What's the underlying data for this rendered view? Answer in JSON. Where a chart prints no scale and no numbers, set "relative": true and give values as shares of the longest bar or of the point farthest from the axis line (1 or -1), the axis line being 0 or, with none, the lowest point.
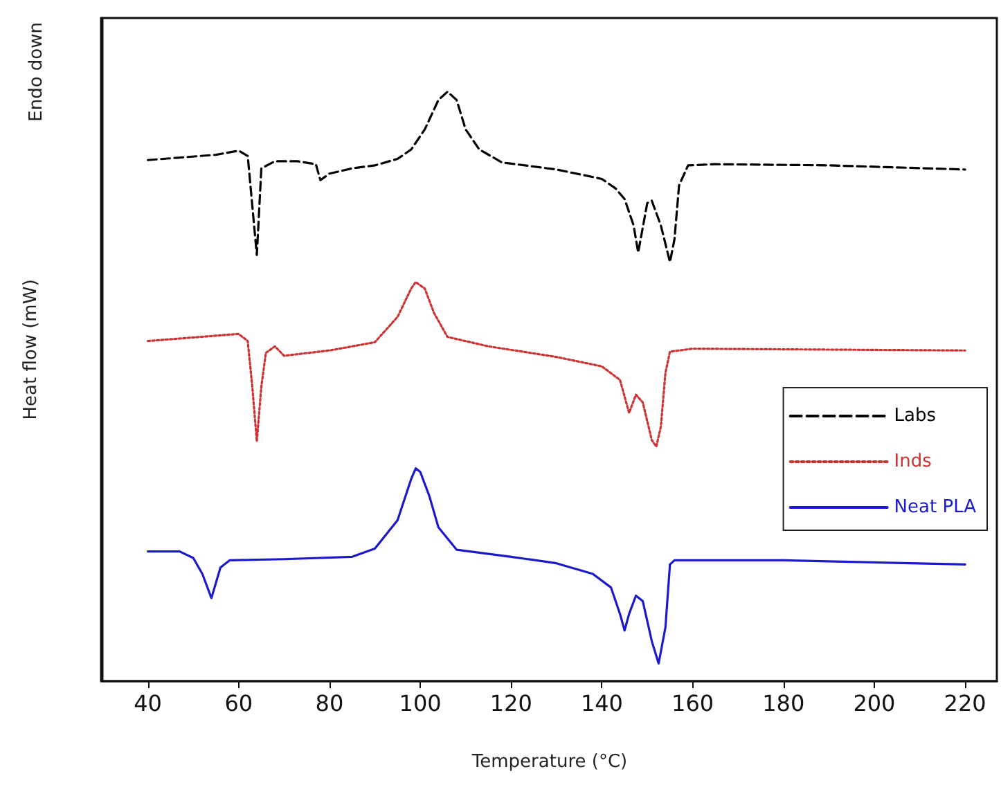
{
  "chart_data": {
    "type": "line",
    "relative": true,
    "xlabel": "Temperature (°C)",
    "ylabel": "Heat flow (mW)",
    "annotations": [
      "Endo down"
    ],
    "xlim": [
      30,
      227
    ],
    "xticks": [
      40,
      60,
      80,
      100,
      120,
      140,
      160,
      180,
      200,
      220
    ],
    "grid": false,
    "legend": "right",
    "marker": "none",
    "series": [
      {
        "name": "Labs",
        "color": "#000000",
        "line_style": "dashed",
        "x": [
          40,
          55,
          60,
          62,
          64,
          65,
          68,
          73,
          77,
          78,
          80,
          85,
          90,
          95,
          98,
          101,
          104,
          106,
          108,
          110,
          113,
          118,
          130,
          140,
          143,
          145,
          147,
          148,
          150,
          151,
          153,
          155,
          156,
          157,
          159,
          165,
          190,
          220
        ],
        "values": [
          0.884,
          0.893,
          0.9,
          0.891,
          0.723,
          0.87,
          0.882,
          0.882,
          0.877,
          0.85,
          0.861,
          0.87,
          0.875,
          0.886,
          0.902,
          0.936,
          0.986,
          1.0,
          0.986,
          0.936,
          0.902,
          0.88,
          0.868,
          0.852,
          0.836,
          0.818,
          0.773,
          0.727,
          0.811,
          0.815,
          0.773,
          0.711,
          0.75,
          0.841,
          0.875,
          0.877,
          0.875,
          0.868
        ]
      },
      {
        "name": "Inds",
        "color": "#cc3333",
        "line_style": "dotted",
        "x": [
          40,
          60,
          62,
          63,
          64,
          65,
          66,
          68,
          70,
          80,
          90,
          95,
          98,
          99,
          101,
          103,
          106,
          115,
          130,
          140,
          144,
          146,
          147.5,
          149,
          151,
          152,
          153,
          154,
          155,
          160,
          220
        ],
        "values": [
          0.577,
          0.589,
          0.577,
          0.5,
          0.407,
          0.5,
          0.557,
          0.568,
          0.552,
          0.561,
          0.575,
          0.618,
          0.666,
          0.677,
          0.666,
          0.625,
          0.584,
          0.568,
          0.55,
          0.534,
          0.511,
          0.455,
          0.486,
          0.473,
          0.409,
          0.398,
          0.432,
          0.523,
          0.559,
          0.564,
          0.561
        ]
      },
      {
        "name": "Neat PLA",
        "color": "#1a1acc",
        "line_style": "solid",
        "x": [
          40,
          47,
          50,
          52,
          54,
          56,
          58,
          70,
          85,
          90,
          95,
          98,
          99,
          100,
          102,
          104,
          108,
          120,
          130,
          138,
          142,
          144,
          145,
          146,
          147.5,
          149,
          151,
          152.5,
          154,
          155,
          156,
          180,
          220
        ],
        "values": [
          0.22,
          0.22,
          0.209,
          0.182,
          0.141,
          0.193,
          0.205,
          0.207,
          0.211,
          0.225,
          0.273,
          0.343,
          0.361,
          0.355,
          0.314,
          0.261,
          0.223,
          0.211,
          0.2,
          0.182,
          0.159,
          0.114,
          0.086,
          0.114,
          0.145,
          0.136,
          0.068,
          0.03,
          0.091,
          0.198,
          0.205,
          0.205,
          0.198
        ]
      }
    ]
  }
}
